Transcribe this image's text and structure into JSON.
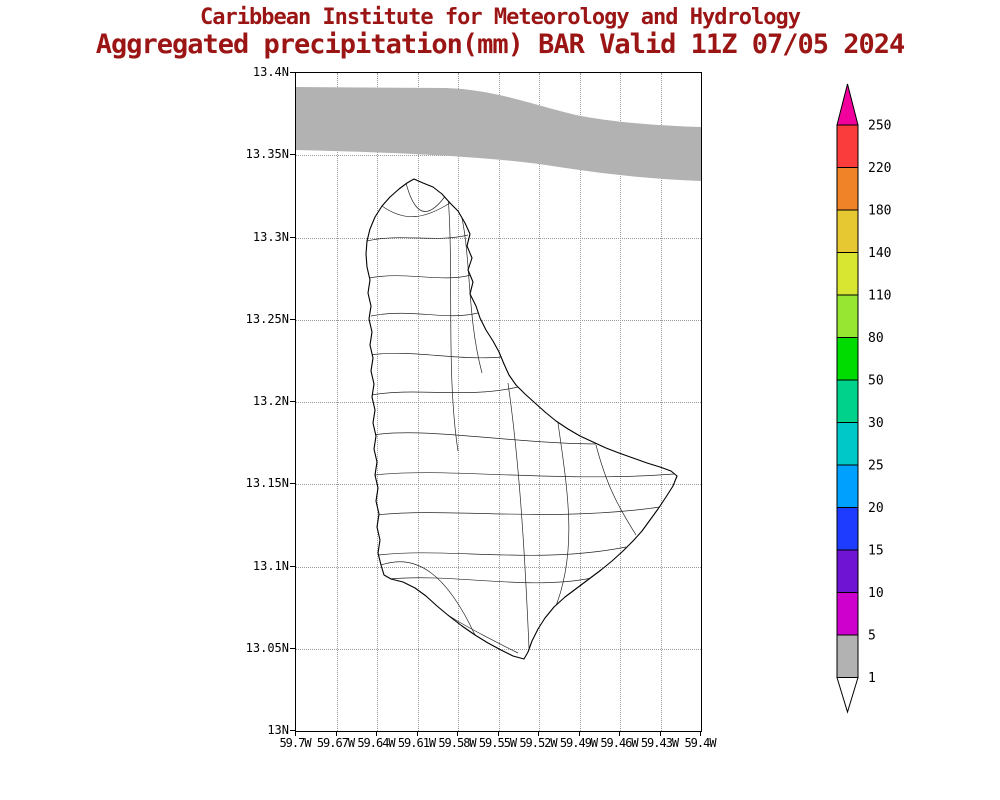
{
  "title": {
    "line1": "Caribbean Institute for Meteorology and Hydrology",
    "line2": "Aggregated precipitation(mm) BAR Valid 11Z 07/05 2024"
  },
  "colors": {
    "title_text": "#9b1515",
    "axis_text": "#000000",
    "grid": "#9a9a9a",
    "coastline": "#000000",
    "shading_1_5_gray": "#b2b2b2"
  },
  "axes": {
    "y_ticks": [
      "13.4N",
      "13.35N",
      "13.3N",
      "13.25N",
      "13.2N",
      "13.15N",
      "13.1N",
      "13.05N",
      "13N"
    ],
    "x_ticks": [
      "59.7W",
      "59.67W",
      "59.64W",
      "59.61W",
      "59.58W",
      "59.55W",
      "59.52W",
      "59.49W",
      "59.46W",
      "59.43W",
      "59.4W"
    ]
  },
  "colorbar": {
    "labels_top_to_bottom": [
      "250",
      "220",
      "180",
      "140",
      "110",
      "80",
      "50",
      "30",
      "25",
      "20",
      "15",
      "10",
      "5",
      "1"
    ],
    "segment_colors_top_to_bottom": [
      "#fa3c3c",
      "#f08228",
      "#e6c832",
      "#d8e632",
      "#96e632",
      "#00dc00",
      "#00d28c",
      "#00c8c8",
      "#00a0ff",
      "#1e3cff",
      "#6e14d2",
      "#cd00cd",
      "#b2b2b2"
    ],
    "above_max_color": "#f2009e",
    "below_min_color": "#ffffff"
  },
  "chart_data": {
    "type": "map",
    "title": "Aggregated precipitation(mm) BAR Valid 11Z 07/05 2024",
    "units": "mm",
    "region_code": "BAR",
    "valid": "11Z 07/05 2024",
    "lat_range": [
      "13N",
      "13.4N"
    ],
    "lon_range": [
      "59.7W",
      "59.4W"
    ],
    "scale_levels": [
      1,
      5,
      10,
      15,
      20,
      25,
      30,
      50,
      80,
      110,
      140,
      180,
      220,
      250
    ],
    "shaded_features": [
      {
        "value_range": "1-5 mm",
        "color": "#b2b2b2",
        "where": "band across the north of the plot, offshore north of Barbados"
      }
    ]
  }
}
